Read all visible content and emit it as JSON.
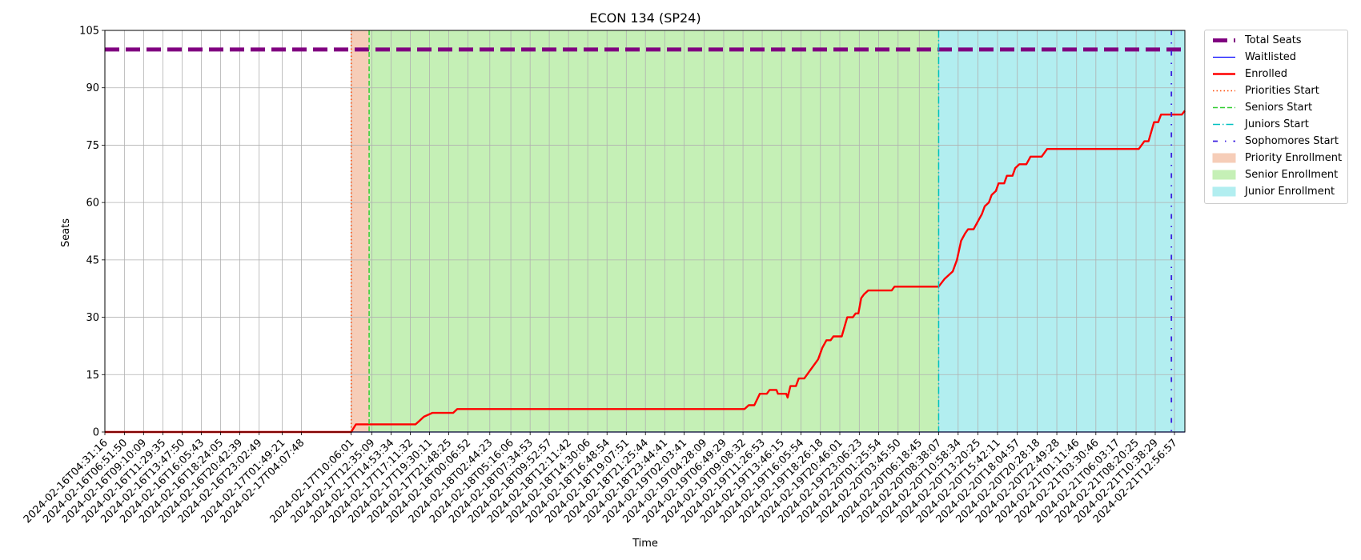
{
  "chart_data": {
    "type": "line",
    "title": "ECON 134 (SP24)",
    "xlabel": "Time",
    "ylabel": "Seats",
    "ylim": [
      0,
      105
    ],
    "yticks": [
      0,
      15,
      30,
      45,
      60,
      75,
      90,
      105
    ],
    "xlim": [
      "2024-02-16T04:31:16",
      "2024-02-21T14:12:00"
    ],
    "grid": true,
    "legend_position": "outside right",
    "xticks": [
      "2024-02-16T04:31:16",
      "2024-02-16T06:51:50",
      "2024-02-16T09:10:09",
      "2024-02-16T11:29:35",
      "2024-02-16T13:47:50",
      "2024-02-16T16:05:43",
      "2024-02-16T18:24:05",
      "2024-02-16T20:42:39",
      "2024-02-16T23:02:49",
      "2024-02-17T01:49:21",
      "2024-02-17T04:07:48",
      "2024-02-17T10:06:01",
      "2024-02-17T12:35:09",
      "2024-02-17T14:53:34",
      "2024-02-17T17:11:32",
      "2024-02-17T19:30:11",
      "2024-02-17T21:48:25",
      "2024-02-18T00:06:52",
      "2024-02-18T02:44:23",
      "2024-02-18T05:16:06",
      "2024-02-18T07:34:53",
      "2024-02-18T09:52:57",
      "2024-02-18T12:11:42",
      "2024-02-18T14:30:06",
      "2024-02-18T16:48:54",
      "2024-02-18T19:07:51",
      "2024-02-18T21:25:44",
      "2024-02-18T23:44:41",
      "2024-02-19T02:03:41",
      "2024-02-19T04:28:09",
      "2024-02-19T06:49:29",
      "2024-02-19T09:08:32",
      "2024-02-19T11:26:53",
      "2024-02-19T13:46:15",
      "2024-02-19T16:05:54",
      "2024-02-19T18:26:18",
      "2024-02-19T20:46:01",
      "2024-02-19T23:06:23",
      "2024-02-20T01:25:54",
      "2024-02-20T03:45:50",
      "2024-02-20T06:18:45",
      "2024-02-20T08:38:07",
      "2024-02-20T10:58:34",
      "2024-02-20T13:20:25",
      "2024-02-20T15:42:11",
      "2024-02-20T18:04:57",
      "2024-02-20T20:28:18",
      "2024-02-20T22:49:28",
      "2024-02-21T01:11:46",
      "2024-02-21T03:30:46",
      "2024-02-21T06:03:17",
      "2024-02-21T08:20:25",
      "2024-02-21T10:38:29",
      "2024-02-21T12:56:57"
    ],
    "series": [
      {
        "name": "Total Seats",
        "color": "#800080",
        "style": "dashed-thick",
        "y": 100
      },
      {
        "name": "Waitlisted",
        "color": "#0000ff",
        "style": "solid-thin",
        "y": 0
      },
      {
        "name": "Enrolled",
        "color": "#ff0000",
        "style": "solid",
        "points": [
          [
            "2024-02-16T04:31:16",
            0
          ],
          [
            "2024-02-17T10:06:01",
            0
          ],
          [
            "2024-02-17T10:40:00",
            2
          ],
          [
            "2024-02-17T17:50:00",
            2
          ],
          [
            "2024-02-17T18:20:00",
            3
          ],
          [
            "2024-02-17T18:50:00",
            4
          ],
          [
            "2024-02-17T19:50:00",
            5
          ],
          [
            "2024-02-17T22:20:00",
            5
          ],
          [
            "2024-02-17T22:50:00",
            6
          ],
          [
            "2024-02-19T09:20:00",
            6
          ],
          [
            "2024-02-19T09:50:00",
            7
          ],
          [
            "2024-02-19T10:30:00",
            7
          ],
          [
            "2024-02-19T11:10:00",
            10
          ],
          [
            "2024-02-19T12:00:00",
            10
          ],
          [
            "2024-02-19T12:20:00",
            11
          ],
          [
            "2024-02-19T13:10:00",
            11
          ],
          [
            "2024-02-19T13:20:00",
            10
          ],
          [
            "2024-02-19T14:20:00",
            10
          ],
          [
            "2024-02-19T14:30:00",
            9
          ],
          [
            "2024-02-19T14:50:00",
            12
          ],
          [
            "2024-02-19T15:30:00",
            12
          ],
          [
            "2024-02-19T15:50:00",
            14
          ],
          [
            "2024-02-19T16:30:00",
            14
          ],
          [
            "2024-02-19T17:10:00",
            16
          ],
          [
            "2024-02-19T18:10:00",
            19
          ],
          [
            "2024-02-19T18:40:00",
            22
          ],
          [
            "2024-02-19T19:10:00",
            24
          ],
          [
            "2024-02-19T19:40:00",
            24
          ],
          [
            "2024-02-19T20:00:00",
            25
          ],
          [
            "2024-02-19T21:00:00",
            25
          ],
          [
            "2024-02-19T21:40:00",
            30
          ],
          [
            "2024-02-19T22:20:00",
            30
          ],
          [
            "2024-02-19T22:40:00",
            31
          ],
          [
            "2024-02-19T23:00:00",
            31
          ],
          [
            "2024-02-19T23:20:00",
            35
          ],
          [
            "2024-02-19T23:40:00",
            36
          ],
          [
            "2024-02-20T00:10:00",
            37
          ],
          [
            "2024-02-20T03:00:00",
            37
          ],
          [
            "2024-02-20T03:20:00",
            38
          ],
          [
            "2024-02-20T08:38:07",
            38
          ],
          [
            "2024-02-20T09:20:00",
            40
          ],
          [
            "2024-02-20T09:50:00",
            41
          ],
          [
            "2024-02-20T10:20:00",
            42
          ],
          [
            "2024-02-20T10:50:00",
            45
          ],
          [
            "2024-02-20T11:20:00",
            50
          ],
          [
            "2024-02-20T11:50:00",
            52
          ],
          [
            "2024-02-20T12:10:00",
            53
          ],
          [
            "2024-02-20T12:50:00",
            53
          ],
          [
            "2024-02-20T13:50:00",
            57
          ],
          [
            "2024-02-20T14:10:00",
            59
          ],
          [
            "2024-02-20T14:40:00",
            60
          ],
          [
            "2024-02-20T15:00:00",
            62
          ],
          [
            "2024-02-20T15:30:00",
            63
          ],
          [
            "2024-02-20T15:50:00",
            65
          ],
          [
            "2024-02-20T16:30:00",
            65
          ],
          [
            "2024-02-20T16:50:00",
            67
          ],
          [
            "2024-02-20T17:30:00",
            67
          ],
          [
            "2024-02-20T17:50:00",
            69
          ],
          [
            "2024-02-20T18:20:00",
            70
          ],
          [
            "2024-02-20T19:10:00",
            70
          ],
          [
            "2024-02-20T19:40:00",
            72
          ],
          [
            "2024-02-20T21:00:00",
            72
          ],
          [
            "2024-02-20T21:40:00",
            74
          ],
          [
            "2024-02-21T08:40:00",
            74
          ],
          [
            "2024-02-21T09:00:00",
            75
          ],
          [
            "2024-02-21T09:20:00",
            76
          ],
          [
            "2024-02-21T09:50:00",
            76
          ],
          [
            "2024-02-21T10:30:00",
            81
          ],
          [
            "2024-02-21T11:00:00",
            81
          ],
          [
            "2024-02-21T11:20:00",
            83
          ],
          [
            "2024-02-21T13:50:00",
            83
          ],
          [
            "2024-02-21T14:12:00",
            84
          ]
        ]
      },
      {
        "name": "Priorities Start",
        "color": "#ff4500",
        "style": "dotted-vline",
        "x": "2024-02-17T10:06:01"
      },
      {
        "name": "Seniors Start",
        "color": "#32cd32",
        "style": "dashed-vline",
        "x": "2024-02-17T12:15:00"
      },
      {
        "name": "Juniors Start",
        "color": "#00c0c0",
        "style": "dashdot-vline",
        "x": "2024-02-20T08:38:07"
      },
      {
        "name": "Sophomores Start",
        "color": "#3b1fe0",
        "style": "loose-dashdot-vline",
        "x": "2024-02-21T12:35:00"
      }
    ],
    "spans": [
      {
        "name": "Priority Enrollment",
        "color": "#f6cdb8",
        "from": "2024-02-17T10:06:01",
        "to": "2024-02-17T12:15:00"
      },
      {
        "name": "Senior Enrollment",
        "color": "#c5f0b6",
        "from": "2024-02-17T12:15:00",
        "to": "2024-02-20T08:38:07"
      },
      {
        "name": "Junior Enrollment",
        "color": "#b2eef0",
        "from": "2024-02-20T08:38:07",
        "to": "2024-02-21T14:12:00"
      }
    ]
  }
}
